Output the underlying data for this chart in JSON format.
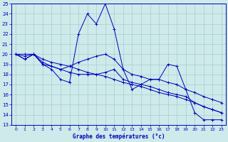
{
  "title": "Graphe des températures (°c)",
  "background_color": "#ceeaea",
  "grid_color": "#aacccc",
  "line_color": "#0000bb",
  "xlim": [
    0,
    23
  ],
  "ylim": [
    13,
    25
  ],
  "xtick_labels": [
    "0",
    "1",
    "2",
    "3",
    "4",
    "5",
    "6",
    "7",
    "8",
    "9",
    "10",
    "11",
    "12",
    "13",
    "14",
    "15",
    "16",
    "17",
    "18",
    "19",
    "20",
    "21",
    "22",
    "23"
  ],
  "ytick_labels": [
    "13",
    "14",
    "15",
    "16",
    "17",
    "18",
    "19",
    "20",
    "21",
    "22",
    "23",
    "24",
    "25"
  ],
  "series": [
    [
      20.0,
      19.5,
      20.0,
      19.0,
      18.5,
      17.5,
      17.2,
      22.0,
      24.0,
      23.0,
      25.0,
      22.5,
      18.5,
      16.5,
      17.0,
      17.5,
      17.5,
      19.0,
      18.8,
      16.5,
      14.2,
      13.5,
      13.5,
      13.5
    ],
    [
      20.0,
      20.0,
      20.0,
      19.2,
      18.8,
      18.5,
      18.8,
      19.2,
      19.5,
      19.8,
      20.0,
      19.5,
      18.5,
      18.0,
      17.8,
      17.5,
      17.5,
      17.2,
      17.0,
      16.5,
      16.2,
      15.8,
      15.5,
      15.2
    ],
    [
      20.0,
      19.5,
      20.0,
      19.0,
      18.8,
      18.5,
      18.2,
      18.0,
      18.0,
      18.0,
      18.2,
      18.5,
      17.5,
      17.2,
      17.0,
      16.8,
      16.5,
      16.2,
      16.0,
      15.8,
      15.2,
      14.8,
      14.5,
      14.2
    ],
    [
      20.0,
      19.8,
      20.0,
      19.5,
      19.2,
      19.0,
      18.8,
      18.5,
      18.2,
      18.0,
      17.8,
      17.5,
      17.2,
      17.0,
      16.8,
      16.5,
      16.2,
      16.0,
      15.8,
      15.5,
      15.2,
      14.8,
      14.5,
      14.2
    ]
  ]
}
